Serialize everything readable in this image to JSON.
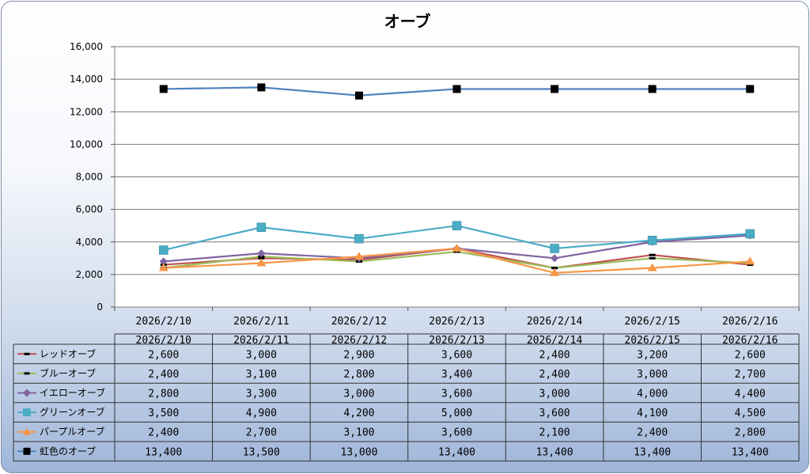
{
  "chart_data": {
    "type": "line",
    "title": "オーブ",
    "xlabel": "",
    "ylabel": "",
    "ylim": [
      0,
      16000
    ],
    "yticks": [
      "0",
      "2,000",
      "4,000",
      "6,000",
      "8,000",
      "10,000",
      "12,000",
      "14,000",
      "16,000"
    ],
    "grid": true,
    "legend": "data-table",
    "categories": [
      "2026/2/10",
      "2026/2/11",
      "2026/2/12",
      "2026/2/13",
      "2026/2/14",
      "2026/2/15",
      "2026/2/16"
    ],
    "series": [
      {
        "name": "レッドオーブ",
        "color": "#c0504d",
        "marker": "dash",
        "values": [
          2600,
          3000,
          2900,
          3600,
          2400,
          3200,
          2600
        ],
        "labels": [
          "2,600",
          "3,000",
          "2,900",
          "3,600",
          "2,400",
          "3,200",
          "2,600"
        ]
      },
      {
        "name": "ブルーオーブ",
        "color": "#9bbb59",
        "marker": "dash",
        "values": [
          2400,
          3100,
          2800,
          3400,
          2400,
          3000,
          2700
        ],
        "labels": [
          "2,400",
          "3,100",
          "2,800",
          "3,400",
          "2,400",
          "3,000",
          "2,700"
        ]
      },
      {
        "name": "イエローオーブ",
        "color": "#8064a2",
        "marker": "diamond",
        "values": [
          2800,
          3300,
          3000,
          3600,
          3000,
          4000,
          4400
        ],
        "labels": [
          "2,800",
          "3,300",
          "3,000",
          "3,600",
          "3,000",
          "4,000",
          "4,400"
        ]
      },
      {
        "name": "グリーンオーブ",
        "color": "#4bacc6",
        "marker": "square",
        "values": [
          3500,
          4900,
          4200,
          5000,
          3600,
          4100,
          4500
        ],
        "labels": [
          "3,500",
          "4,900",
          "4,200",
          "5,000",
          "3,600",
          "4,100",
          "4,500"
        ]
      },
      {
        "name": "パープルオーブ",
        "color": "#f79646",
        "marker": "triangle",
        "values": [
          2400,
          2700,
          3100,
          3600,
          2100,
          2400,
          2800
        ],
        "labels": [
          "2,400",
          "2,700",
          "3,100",
          "3,600",
          "2,100",
          "2,400",
          "2,800"
        ]
      },
      {
        "name": "虹色のオーブ",
        "color": "#4f81bd",
        "marker": "blacksquare",
        "values": [
          13400,
          13500,
          13000,
          13400,
          13400,
          13400,
          13400
        ],
        "labels": [
          "13,400",
          "13,500",
          "13,000",
          "13,400",
          "13,400",
          "13,400",
          "13,400"
        ]
      }
    ]
  }
}
